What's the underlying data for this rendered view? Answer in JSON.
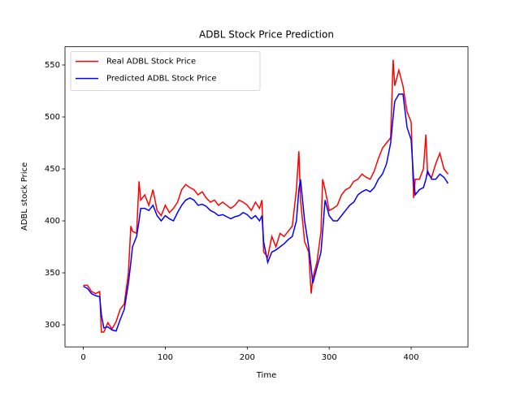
{
  "chart_data": {
    "type": "line",
    "title": "ADBL Stock Price Prediction",
    "xlabel": "Time",
    "ylabel": "ADBL stock Price",
    "x": [
      0,
      5,
      10,
      15,
      20,
      22,
      25,
      30,
      35,
      40,
      45,
      50,
      55,
      58,
      60,
      65,
      68,
      70,
      75,
      80,
      85,
      90,
      95,
      100,
      105,
      110,
      115,
      120,
      125,
      130,
      135,
      140,
      145,
      150,
      155,
      160,
      165,
      170,
      175,
      180,
      185,
      190,
      195,
      200,
      205,
      210,
      215,
      218,
      220,
      225,
      230,
      235,
      240,
      245,
      250,
      255,
      260,
      263,
      265,
      270,
      275,
      278,
      280,
      285,
      290,
      292,
      295,
      300,
      305,
      310,
      315,
      320,
      325,
      330,
      335,
      340,
      345,
      350,
      355,
      360,
      365,
      370,
      375,
      378,
      380,
      385,
      390,
      395,
      400,
      403,
      405,
      410,
      415,
      418,
      420,
      425,
      430,
      435,
      440,
      445
    ],
    "series": [
      {
        "name": "Real ADBL Stock Price",
        "color": "#ff0000",
        "values": [
          338,
          338,
          332,
          330,
          332,
          293,
          293,
          302,
          296,
          303,
          315,
          320,
          350,
          395,
          390,
          388,
          438,
          420,
          425,
          415,
          430,
          410,
          405,
          415,
          408,
          412,
          418,
          430,
          435,
          432,
          430,
          425,
          428,
          422,
          418,
          420,
          415,
          418,
          415,
          412,
          415,
          420,
          418,
          415,
          410,
          418,
          412,
          420,
          370,
          365,
          385,
          375,
          388,
          385,
          390,
          395,
          430,
          467,
          420,
          380,
          370,
          330,
          345,
          360,
          390,
          440,
          430,
          410,
          412,
          415,
          425,
          430,
          432,
          438,
          440,
          445,
          442,
          440,
          448,
          460,
          470,
          475,
          480,
          555,
          530,
          545,
          530,
          505,
          495,
          422,
          440,
          440,
          450,
          483,
          445,
          442,
          455,
          465,
          450,
          445
        ]
      },
      {
        "name": "Predicted ADBL Stock Price",
        "color": "#0000ff",
        "values": [
          337,
          335,
          330,
          328,
          327,
          310,
          297,
          298,
          295,
          294,
          305,
          315,
          340,
          360,
          375,
          385,
          400,
          412,
          412,
          410,
          415,
          405,
          400,
          405,
          402,
          400,
          408,
          415,
          420,
          422,
          420,
          415,
          416,
          414,
          410,
          408,
          405,
          406,
          404,
          402,
          404,
          405,
          408,
          406,
          402,
          405,
          400,
          405,
          380,
          360,
          370,
          372,
          375,
          378,
          382,
          385,
          400,
          430,
          440,
          400,
          375,
          355,
          340,
          355,
          370,
          390,
          420,
          405,
          400,
          400,
          405,
          410,
          415,
          418,
          425,
          428,
          430,
          428,
          432,
          440,
          445,
          455,
          475,
          500,
          515,
          522,
          522,
          490,
          478,
          440,
          425,
          430,
          432,
          440,
          448,
          440,
          440,
          445,
          442,
          436
        ]
      }
    ],
    "xlim": [
      -22.35,
      469.35
    ],
    "ylim": [
      278.75,
      567.5
    ],
    "xticks": [
      0,
      100,
      200,
      300,
      400
    ],
    "yticks": [
      300,
      350,
      400,
      450,
      500,
      550
    ],
    "legend": "upper left"
  }
}
